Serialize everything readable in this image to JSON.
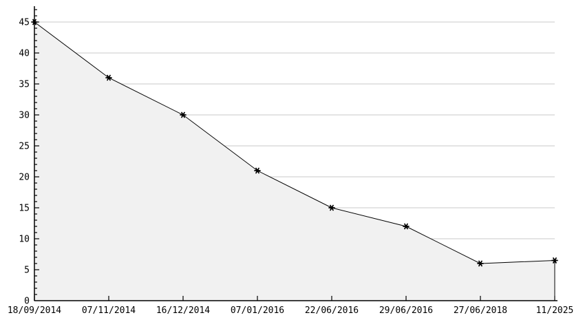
{
  "chart_data": {
    "type": "area",
    "categories": [
      "18/09/2014",
      "07/11/2014",
      "16/12/2014",
      "07/01/2016",
      "22/06/2016",
      "29/06/2016",
      "27/06/2018",
      "11/2025"
    ],
    "values": [
      45,
      36,
      30,
      21,
      15,
      12,
      6,
      6.5
    ],
    "title": "",
    "xlabel": "",
    "ylabel": "",
    "ylim": [
      0,
      45
    ],
    "y_tick_step": 5,
    "y_minor_step": 1,
    "grid": true,
    "legend_position": "none",
    "marker": "asterisk",
    "colors": {
      "line": "#000000",
      "marker": "#000000",
      "fill": "#f1f1f1",
      "grid": "#dcdcdc",
      "axis": "#000000",
      "text": "#000000",
      "background": "#ffffff"
    }
  }
}
